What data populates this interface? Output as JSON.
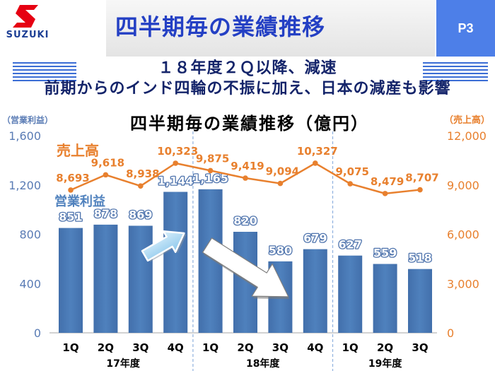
{
  "header": {
    "logo_text": "SUZUKI",
    "logo_icon": "suzuki-logo-icon",
    "title": "四半期毎の業績推移",
    "page_label": "P3"
  },
  "subtitle": {
    "line1": "１８年度２Ｑ以降、減速",
    "line2": "前期からのインド四輪の不振に加え、日本の減産も影響"
  },
  "colors": {
    "logo_red": "#e60012",
    "logo_blue": "#1d3f95",
    "title_blue": "#2440c4",
    "page_box": "#4d7fe8",
    "subtitle_text": "#14246a",
    "stripe": "#3b6dd5",
    "bar": "#4f81bd",
    "bar_dark": "#426fab",
    "line": "#e8802e",
    "left_axis_text": "#5a7cb5",
    "divider": "#8fb1de",
    "axis": "#a6a6a6"
  },
  "annotations": [
    {
      "icon": "arrow-up-right-icon"
    },
    {
      "icon": "arrow-down-right-icon"
    }
  ],
  "chart_data": {
    "type": "bar",
    "title": "四半期毎の業績推移（億円）",
    "ylabel": "（営業利益）",
    "y2label": "（売上高）",
    "ylim": [
      0,
      1600
    ],
    "yticks": [
      0,
      400,
      800,
      1200,
      1600
    ],
    "ytick_labels": [
      "0",
      "400",
      "800",
      "1,200",
      "1,600"
    ],
    "y2lim": [
      0,
      12000
    ],
    "y2ticks": [
      0,
      3000,
      6000,
      9000,
      12000
    ],
    "y2tick_labels": [
      "0",
      "3,000",
      "6,000",
      "9,000",
      "12,000"
    ],
    "grid": false,
    "legend": "top-left",
    "fiscal_years": [
      {
        "label": "17年度",
        "quarters": [
          "1Q",
          "2Q",
          "3Q",
          "4Q"
        ]
      },
      {
        "label": "18年度",
        "quarters": [
          "1Q",
          "2Q",
          "3Q",
          "4Q"
        ]
      },
      {
        "label": "19年度",
        "quarters": [
          "1Q",
          "2Q",
          "3Q"
        ]
      }
    ],
    "series": [
      {
        "name": "営業利益",
        "type": "bar",
        "axis": "left",
        "values": [
          851,
          878,
          869,
          1144,
          1165,
          820,
          580,
          679,
          627,
          559,
          518
        ],
        "labels": [
          "851",
          "878",
          "869",
          "1,144",
          "1,165",
          "820",
          "580",
          "679",
          "627",
          "559",
          "518"
        ]
      },
      {
        "name": "売上高",
        "type": "line",
        "axis": "right",
        "values": [
          8693,
          9618,
          8938,
          10323,
          9875,
          9419,
          9094,
          10327,
          9075,
          8479,
          8707
        ],
        "labels": [
          "8,693",
          "9,618",
          "8,938",
          "10,323",
          "9,875",
          "9,419",
          "9,094",
          "10,327",
          "9,075",
          "8,479",
          "8,707"
        ]
      }
    ]
  }
}
